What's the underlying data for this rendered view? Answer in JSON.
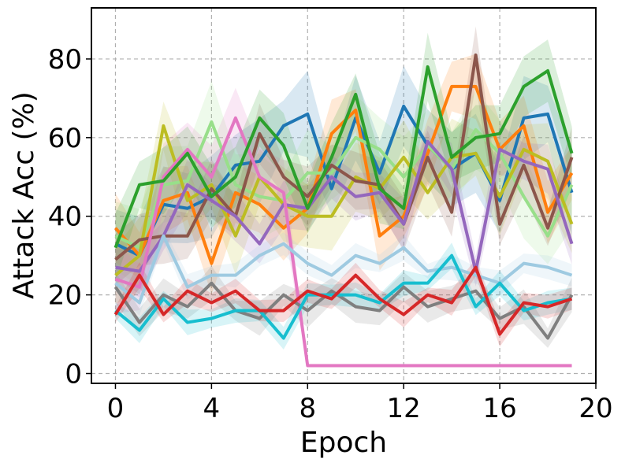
{
  "chart_data": {
    "type": "line",
    "title": "",
    "xlabel": "Epoch",
    "ylabel": "Attack Acc (%)",
    "xlim": [
      -1.0,
      20.0
    ],
    "ylim": [
      -2.5,
      93.0
    ],
    "xticks": [
      0,
      4,
      8,
      12,
      16,
      20
    ],
    "yticks": [
      0,
      20,
      40,
      60,
      80
    ],
    "grid": true,
    "x": [
      0,
      1,
      2,
      3,
      4,
      5,
      6,
      7,
      8,
      9,
      10,
      11,
      12,
      13,
      14,
      15,
      16,
      17,
      18,
      19
    ],
    "series": [
      {
        "name": "tab:blue",
        "color": "#1f77b4",
        "band": 10,
        "values": [
          33,
          30,
          43,
          42,
          45,
          53,
          54,
          63,
          66,
          47,
          65,
          51,
          68,
          58,
          52,
          56,
          44,
          65,
          66,
          46
        ]
      },
      {
        "name": "tab:orange",
        "color": "#ff7f0e",
        "band": 8,
        "values": [
          37,
          30,
          44,
          46,
          28,
          46,
          43,
          37,
          42,
          61,
          67,
          35,
          40,
          56,
          73,
          73,
          57,
          63,
          41,
          51
        ]
      },
      {
        "name": "lightgreen",
        "color": "#98df8a",
        "band": 10,
        "values": [
          35,
          32,
          48,
          49,
          64,
          48,
          45,
          44,
          51,
          51,
          60,
          57,
          50,
          58,
          52,
          62,
          56,
          45,
          35,
          48
        ]
      },
      {
        "name": "olive",
        "color": "#bcbd22",
        "band": 9,
        "values": [
          25,
          30,
          63,
          44,
          48,
          35,
          50,
          43,
          40,
          40,
          50,
          47,
          55,
          46,
          55,
          56,
          45,
          57,
          54,
          38
        ]
      },
      {
        "name": "brown",
        "color": "#8c564b",
        "band": 7,
        "values": [
          29,
          34,
          35,
          35,
          47,
          40,
          61,
          50,
          45,
          53,
          49,
          48,
          38,
          55,
          41,
          81,
          38,
          53,
          37,
          55
        ]
      },
      {
        "name": "purple",
        "color": "#9467bd",
        "band": 6,
        "values": [
          27,
          26,
          35,
          48,
          44,
          40,
          33,
          43,
          42,
          50,
          45,
          46,
          38,
          59,
          52,
          26,
          57,
          54,
          52,
          33
        ]
      },
      {
        "name": "pink",
        "color": "#e377c2",
        "band": 8,
        "values": [
          24,
          22,
          50,
          57,
          50,
          65,
          50,
          46,
          2,
          2,
          2,
          2,
          2,
          2,
          2,
          2,
          2,
          2,
          2,
          2
        ]
      },
      {
        "name": "tab:green",
        "color": "#2ca02c",
        "band": 8,
        "values": [
          32,
          48,
          49,
          56,
          45,
          50,
          65,
          58,
          42,
          55,
          71,
          47,
          42,
          78,
          55,
          60,
          61,
          73,
          77,
          56
        ]
      },
      {
        "name": "lightblue",
        "color": "#9ecae1",
        "band": 3,
        "values": [
          23,
          18,
          35,
          22,
          25,
          25,
          30,
          33,
          28,
          25,
          30,
          28,
          32,
          26,
          27,
          25,
          23,
          28,
          27,
          25
        ]
      },
      {
        "name": "gray",
        "color": "#7f7f7f",
        "band": 4,
        "values": [
          22,
          13,
          20,
          17,
          23,
          16,
          14,
          20,
          16,
          21,
          17,
          16,
          22,
          17,
          19,
          21,
          14,
          17,
          9,
          20
        ]
      },
      {
        "name": "cyan",
        "color": "#17becf",
        "band": 3,
        "values": [
          16,
          11,
          19,
          13,
          14,
          16,
          16,
          9,
          20,
          20,
          20,
          18,
          23,
          23,
          30,
          17,
          23,
          16,
          18,
          19
        ]
      },
      {
        "name": "red",
        "color": "#d62728",
        "band": 3,
        "values": [
          15,
          25,
          15,
          21,
          18,
          21,
          16,
          16,
          21,
          19,
          25,
          19,
          15,
          20,
          18,
          27,
          10,
          18,
          17,
          19
        ]
      }
    ]
  }
}
